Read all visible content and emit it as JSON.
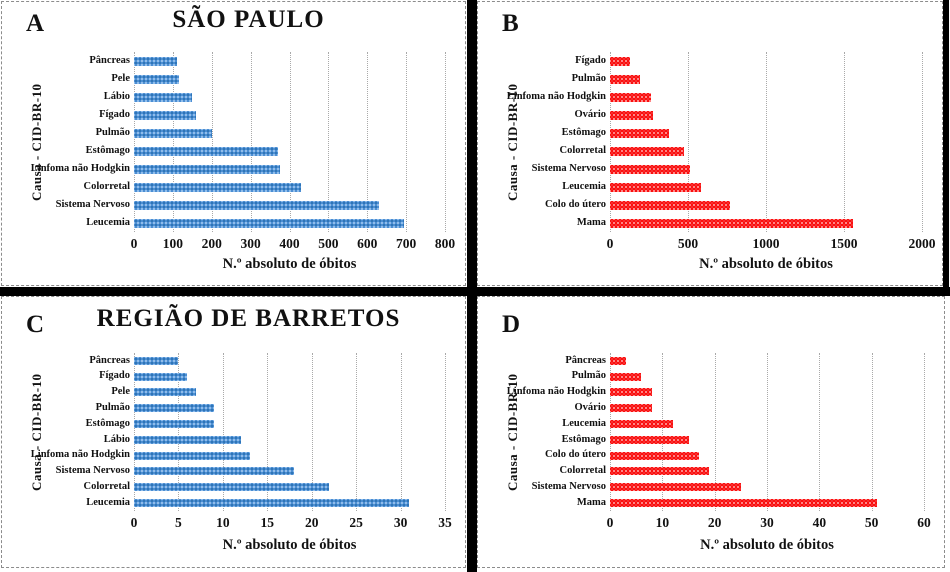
{
  "chart_data": [
    {
      "type": "bar",
      "orientation": "horizontal",
      "panel_letter": "A",
      "title": "SÃO PAULO",
      "categories": [
        "Pâncreas",
        "Pele",
        "Lábio",
        "Fígado",
        "Pulmão",
        "Estômago",
        "Linfoma não Hodgkin",
        "Colorretal",
        "Sistema Nervoso",
        "Leucemia"
      ],
      "values": [
        110,
        115,
        150,
        160,
        200,
        370,
        375,
        430,
        630,
        695
      ],
      "xlabel": "N.º absoluto de óbitos",
      "ylabel": "Causa - CID-BR-10",
      "xlim": [
        0,
        800
      ],
      "xticks": [
        0,
        100,
        200,
        300,
        400,
        500,
        600,
        700,
        800
      ],
      "grid": true,
      "legend": "none",
      "bar_color": "#4e8fd5",
      "bar_dot_color": "#2e74b5",
      "bar_light_dot_color": "#9dc6ee"
    },
    {
      "type": "bar",
      "orientation": "horizontal",
      "panel_letter": "B",
      "title": "",
      "categories": [
        "Fígado",
        "Pulmão",
        "Linfoma não Hodgkin",
        "Ovário",
        "Estômago",
        "Colorretal",
        "Sistema Nervoso",
        "Leucemia",
        "Colo do útero",
        "Mama"
      ],
      "values": [
        130,
        190,
        260,
        275,
        375,
        475,
        515,
        585,
        770,
        1560
      ],
      "xlabel": "N.º absoluto de óbitos",
      "ylabel": "Causa - CID-BR-10",
      "xlim": [
        0,
        2000
      ],
      "xticks": [
        0,
        500,
        1000,
        1500,
        2000
      ],
      "grid": true,
      "legend": "none",
      "bar_color": "#fb0c0c",
      "bar_dot_color": "#f63030",
      "bar_light_dot_color": "#ff9d9d"
    },
    {
      "type": "bar",
      "orientation": "horizontal",
      "panel_letter": "C",
      "title": "REGIÃO DE BARRETOS",
      "categories": [
        "Pâncreas",
        "Fígado",
        "Pele",
        "Pulmão",
        "Estômago",
        "Lábio",
        "Linfoma não Hodgkin",
        "Sistema Nervoso",
        "Colorretal",
        "Leucemia"
      ],
      "values": [
        5,
        6,
        7,
        9,
        9,
        12,
        13,
        18,
        22,
        31
      ],
      "xlabel": "N.º absoluto de óbitos",
      "ylabel": "Causa - CID-BR-10",
      "xlim": [
        0,
        35
      ],
      "xticks": [
        0,
        5,
        10,
        15,
        20,
        25,
        30,
        35
      ],
      "grid": true,
      "legend": "none",
      "bar_color": "#4e8fd5",
      "bar_dot_color": "#2e74b5",
      "bar_light_dot_color": "#9dc6ee"
    },
    {
      "type": "bar",
      "orientation": "horizontal",
      "panel_letter": "D",
      "title": "",
      "categories": [
        "Pâncreas",
        "Pulmão",
        "Linfoma não Hodgkin",
        "Ovário",
        "Leucemia",
        "Estômago",
        "Colo do útero",
        "Colorretal",
        "Sistema Nervoso",
        "Mama"
      ],
      "values": [
        3,
        6,
        8,
        8,
        12,
        15,
        17,
        19,
        25,
        51
      ],
      "xlabel": "N.º absoluto de óbitos",
      "ylabel": "Causa - CID-BR-10",
      "xlim": [
        0,
        60
      ],
      "xticks": [
        0,
        10,
        20,
        30,
        40,
        50,
        60
      ],
      "grid": true,
      "legend": "none",
      "bar_color": "#fb0c0c",
      "bar_dot_color": "#f63030",
      "bar_light_dot_color": "#ff9d9d"
    }
  ]
}
